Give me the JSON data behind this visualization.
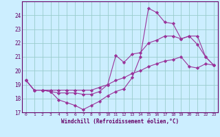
{
  "xlabel": "Windchill (Refroidissement éolien,°C)",
  "x": [
    0,
    1,
    2,
    3,
    4,
    5,
    6,
    7,
    8,
    9,
    10,
    11,
    12,
    13,
    14,
    15,
    16,
    17,
    18,
    19,
    20,
    21,
    22,
    23
  ],
  "line1": [
    19.3,
    18.6,
    18.6,
    18.5,
    17.9,
    17.7,
    17.5,
    17.2,
    17.5,
    17.8,
    18.2,
    18.5,
    18.7,
    19.5,
    21.0,
    24.5,
    24.2,
    23.5,
    23.4,
    22.3,
    22.5,
    21.9,
    21.0,
    20.4
  ],
  "line2": [
    19.3,
    18.6,
    18.6,
    18.5,
    18.4,
    18.4,
    18.4,
    18.3,
    18.3,
    18.5,
    19.0,
    21.1,
    20.6,
    21.2,
    21.3,
    22.0,
    22.2,
    22.5,
    22.5,
    22.3,
    22.5,
    22.5,
    21.0,
    20.4
  ],
  "line3": [
    19.3,
    18.6,
    18.6,
    18.6,
    18.6,
    18.6,
    18.6,
    18.6,
    18.6,
    18.8,
    19.0,
    19.3,
    19.5,
    19.8,
    20.0,
    20.3,
    20.5,
    20.7,
    20.8,
    21.0,
    20.3,
    20.2,
    20.5,
    20.4
  ],
  "line_color": "#993399",
  "bg_color": "#cceeff",
  "grid_color": "#99cccc",
  "axis_color": "#660066",
  "tick_color": "#660066",
  "ylim": [
    17,
    25
  ],
  "yticks": [
    17,
    18,
    19,
    20,
    21,
    22,
    23,
    24
  ],
  "xticks": [
    0,
    1,
    2,
    3,
    4,
    5,
    6,
    7,
    8,
    9,
    10,
    11,
    12,
    13,
    14,
    15,
    16,
    17,
    18,
    19,
    20,
    21,
    22,
    23
  ]
}
